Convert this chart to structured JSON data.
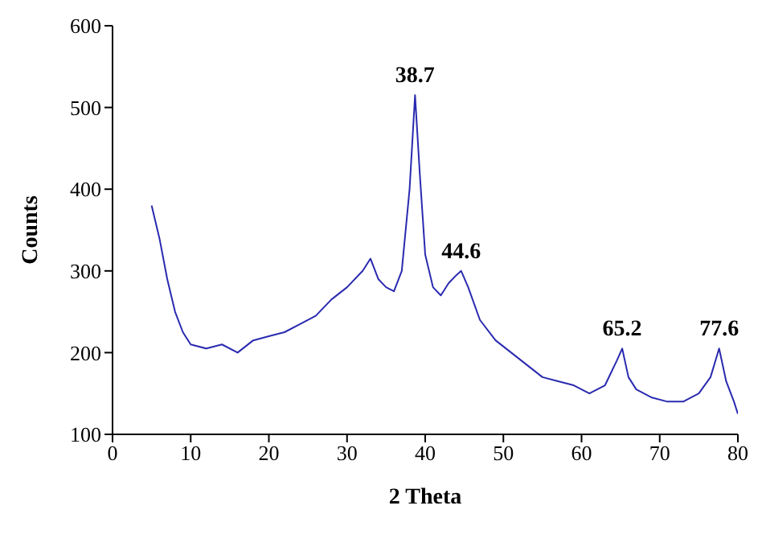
{
  "chart_data": {
    "type": "line",
    "xlabel": "2 Theta",
    "ylabel": "Counts",
    "xlim": [
      0,
      80
    ],
    "xticks": [
      0,
      10,
      20,
      30,
      40,
      50,
      60,
      70,
      80
    ],
    "ylim": [
      100,
      600
    ],
    "yticks": [
      100,
      200,
      300,
      400,
      500,
      600
    ],
    "grid": false,
    "legend": false,
    "marker": "none",
    "line_style": "solid",
    "x": [
      5,
      6,
      7,
      8,
      9,
      10,
      12,
      14,
      16,
      18,
      20,
      22,
      24,
      26,
      28,
      30,
      32,
      33,
      34,
      35,
      36,
      37,
      38,
      38.7,
      39.3,
      40,
      41,
      42,
      43,
      44,
      44.6,
      45.5,
      47,
      49,
      51,
      53,
      55,
      57,
      59,
      61,
      63,
      64.5,
      65.2,
      66,
      67,
      69,
      71,
      73,
      75,
      76.5,
      77.6,
      78.5,
      79.5,
      80
    ],
    "series": [
      {
        "color": "#2a2ab0",
        "values": [
          380,
          340,
          290,
          250,
          225,
          210,
          205,
          210,
          200,
          215,
          220,
          225,
          235,
          245,
          265,
          280,
          300,
          315,
          290,
          280,
          275,
          300,
          400,
          515,
          420,
          320,
          280,
          270,
          285,
          295,
          300,
          280,
          240,
          215,
          200,
          185,
          170,
          165,
          160,
          150,
          160,
          190,
          205,
          170,
          155,
          145,
          140,
          140,
          150,
          170,
          205,
          165,
          140,
          125
        ]
      }
    ],
    "annotations": [
      {
        "text": "38.7",
        "x": 38.7,
        "y": 515
      },
      {
        "text": "44.6",
        "x": 44.6,
        "y": 300
      },
      {
        "text": "65.2",
        "x": 65.2,
        "y": 205
      },
      {
        "text": "77.6",
        "x": 77.6,
        "y": 205
      }
    ]
  }
}
